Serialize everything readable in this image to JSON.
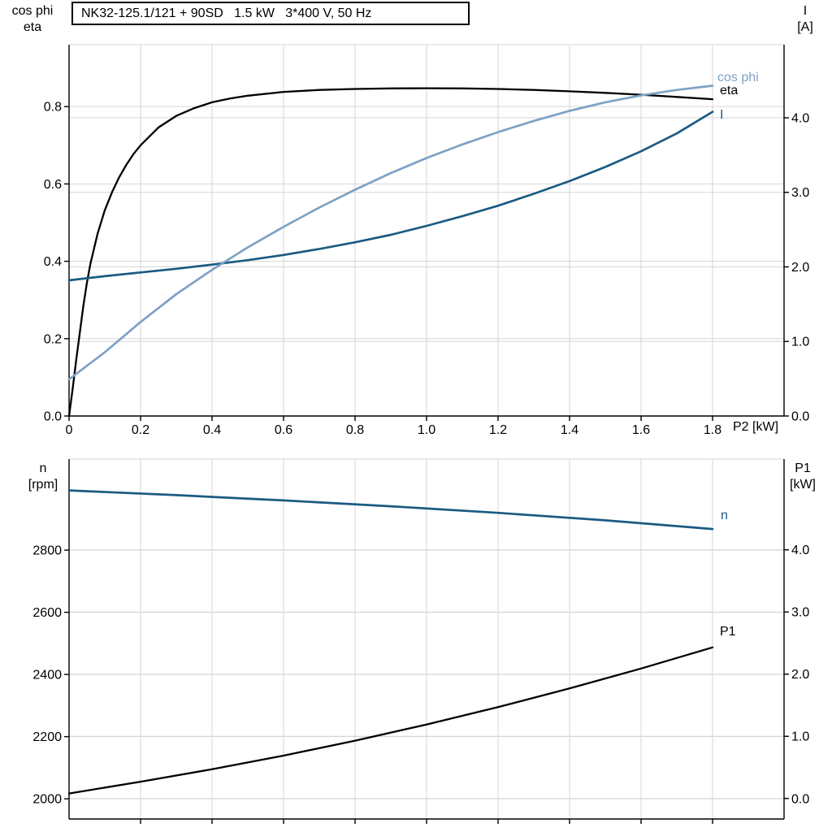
{
  "title_box": {
    "text": "NK32-125.1/121 + 90SD   1.5 kW   3*400 V, 50 Hz"
  },
  "colors": {
    "background": "#ffffff",
    "axis": "#000000",
    "grid": "#d6d6d6",
    "curve_black": "#000000",
    "curve_dark_blue": "#1b5a82",
    "curve_light_blue": "#7da2c6"
  },
  "chart_data": [
    {
      "type": "line",
      "title": "NK32-125.1/121 + 90SD   1.5 kW   3*400 V, 50 Hz",
      "x_axis": {
        "label": "P2 [kW]",
        "min": 0,
        "max": 2.0,
        "ticks": [
          0,
          0.2,
          0.4,
          0.6,
          0.8,
          1.0,
          1.2,
          1.4,
          1.6,
          1.8
        ],
        "tick_labels": [
          "0",
          "0.2",
          "0.4",
          "0.6",
          "0.8",
          "1.0",
          "1.2",
          "1.4",
          "1.6",
          "1.8"
        ],
        "grid": true
      },
      "left_axis": {
        "title_lines": [
          "cos phi",
          "eta"
        ],
        "min": 0,
        "max": 0.96,
        "ticks": [
          0,
          0.2,
          0.4,
          0.6,
          0.8
        ],
        "tick_labels": [
          "0.0",
          "0.2",
          "0.4",
          "0.6",
          "0.8"
        ],
        "grid": true
      },
      "right_axis": {
        "title_lines": [
          "I",
          "[A]"
        ],
        "min": 0,
        "max": 4.98,
        "ticks": [
          0,
          1,
          2,
          3,
          4
        ],
        "tick_labels": [
          "0.0",
          "1.0",
          "2.0",
          "3.0",
          "4.0"
        ],
        "grid": true
      },
      "series": [
        {
          "name": "eta",
          "axis": "left",
          "color": "#000000",
          "width": 2.3,
          "points": [
            [
              0,
              0
            ],
            [
              0.01,
              0.07
            ],
            [
              0.02,
              0.145
            ],
            [
              0.03,
              0.215
            ],
            [
              0.04,
              0.285
            ],
            [
              0.05,
              0.345
            ],
            [
              0.06,
              0.395
            ],
            [
              0.08,
              0.472
            ],
            [
              0.1,
              0.532
            ],
            [
              0.12,
              0.578
            ],
            [
              0.14,
              0.617
            ],
            [
              0.16,
              0.649
            ],
            [
              0.18,
              0.677
            ],
            [
              0.2,
              0.7
            ],
            [
              0.25,
              0.746
            ],
            [
              0.3,
              0.776
            ],
            [
              0.35,
              0.796
            ],
            [
              0.4,
              0.811
            ],
            [
              0.45,
              0.821
            ],
            [
              0.5,
              0.828
            ],
            [
              0.6,
              0.838
            ],
            [
              0.7,
              0.843
            ],
            [
              0.8,
              0.8455
            ],
            [
              0.9,
              0.847
            ],
            [
              1.0,
              0.8475
            ],
            [
              1.1,
              0.847
            ],
            [
              1.2,
              0.8455
            ],
            [
              1.3,
              0.843
            ],
            [
              1.4,
              0.8395
            ],
            [
              1.5,
              0.8355
            ],
            [
              1.6,
              0.8305
            ],
            [
              1.7,
              0.825
            ],
            [
              1.8,
              0.819
            ]
          ]
        },
        {
          "name": "I",
          "axis": "right",
          "color": "#1b5a82",
          "width": 2.7,
          "points": [
            [
              0,
              1.82
            ],
            [
              0.1,
              1.875
            ],
            [
              0.2,
              1.925
            ],
            [
              0.3,
              1.975
            ],
            [
              0.4,
              2.03
            ],
            [
              0.5,
              2.09
            ],
            [
              0.6,
              2.16
            ],
            [
              0.7,
              2.24
            ],
            [
              0.8,
              2.33
            ],
            [
              0.9,
              2.43
            ],
            [
              1.0,
              2.55
            ],
            [
              1.1,
              2.68
            ],
            [
              1.2,
              2.82
            ],
            [
              1.3,
              2.98
            ],
            [
              1.4,
              3.15
            ],
            [
              1.5,
              3.34
            ],
            [
              1.6,
              3.55
            ],
            [
              1.7,
              3.79
            ],
            [
              1.8,
              4.08
            ]
          ]
        },
        {
          "name": "cos phi",
          "axis": "left",
          "color": "#7da2c6",
          "width": 2.7,
          "points": [
            [
              0,
              0.095
            ],
            [
              0.1,
              0.165
            ],
            [
              0.2,
              0.243
            ],
            [
              0.3,
              0.315
            ],
            [
              0.4,
              0.378
            ],
            [
              0.5,
              0.436
            ],
            [
              0.6,
              0.489
            ],
            [
              0.7,
              0.539
            ],
            [
              0.8,
              0.585
            ],
            [
              0.9,
              0.628
            ],
            [
              1.0,
              0.667
            ],
            [
              1.1,
              0.702
            ],
            [
              1.2,
              0.734
            ],
            [
              1.3,
              0.763
            ],
            [
              1.4,
              0.789
            ],
            [
              1.5,
              0.811
            ],
            [
              1.6,
              0.829
            ],
            [
              1.7,
              0.843
            ],
            [
              1.8,
              0.854
            ]
          ]
        }
      ]
    },
    {
      "type": "line",
      "title": "",
      "x_axis": {
        "label": "",
        "min": 0,
        "max": 2.0,
        "ticks": [
          0.2,
          0.4,
          0.6,
          0.8,
          1.0,
          1.2,
          1.4,
          1.6,
          1.8
        ],
        "tick_labels": [],
        "grid": true
      },
      "left_axis": {
        "title_lines": [
          "n",
          "[rpm]"
        ],
        "min": 1935,
        "max": 3093,
        "ticks": [
          2000,
          2200,
          2400,
          2600,
          2800
        ],
        "tick_labels": [
          "2000",
          "2200",
          "2400",
          "2600",
          "2800"
        ],
        "grid": true
      },
      "right_axis": {
        "title_lines": [
          "P1",
          "[kW]"
        ],
        "min": -0.33,
        "max": 5.46,
        "ticks": [
          0,
          1,
          2,
          3,
          4
        ],
        "tick_labels": [
          "0.0",
          "1.0",
          "2.0",
          "3.0",
          "4.0"
        ],
        "grid": true
      },
      "series": [
        {
          "name": "n",
          "axis": "left",
          "color": "#1b5a82",
          "width": 2.7,
          "points": [
            [
              0,
              2992
            ],
            [
              0.3,
              2977
            ],
            [
              0.6,
              2960
            ],
            [
              0.9,
              2941
            ],
            [
              1.2,
              2920
            ],
            [
              1.5,
              2896
            ],
            [
              1.8,
              2868
            ]
          ]
        },
        {
          "name": "P1",
          "axis": "right",
          "color": "#000000",
          "width": 2.3,
          "points": [
            [
              0,
              0.08
            ],
            [
              0.2,
              0.27
            ],
            [
              0.4,
              0.47
            ],
            [
              0.6,
              0.69
            ],
            [
              0.8,
              0.93
            ],
            [
              1.0,
              1.19
            ],
            [
              1.2,
              1.47
            ],
            [
              1.4,
              1.77
            ],
            [
              1.6,
              2.09
            ],
            [
              1.8,
              2.43
            ]
          ]
        }
      ]
    }
  ]
}
